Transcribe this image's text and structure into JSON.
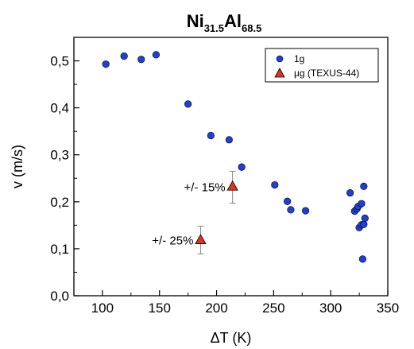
{
  "chart_data": {
    "type": "scatter",
    "title": {
      "parts": [
        {
          "text": "Ni",
          "sub": false
        },
        {
          "text": "31.5",
          "sub": true
        },
        {
          "text": "Al",
          "sub": false
        },
        {
          "text": "68.5",
          "sub": true
        }
      ]
    },
    "xlabel": "ΔT (K)",
    "ylabel": "v (m/s)",
    "xlim": [
      75,
      350
    ],
    "ylim": [
      0.0,
      0.55
    ],
    "xticks": [
      100,
      150,
      200,
      250,
      300,
      350
    ],
    "yticks": [
      {
        "value": 0.0,
        "label": "0,0"
      },
      {
        "value": 0.1,
        "label": "0,1"
      },
      {
        "value": 0.2,
        "label": "0,2"
      },
      {
        "value": 0.3,
        "label": "0,3"
      },
      {
        "value": 0.4,
        "label": "0,4"
      },
      {
        "value": 0.5,
        "label": "0,5"
      }
    ],
    "grid": false,
    "legend_position": "top-right",
    "series": [
      {
        "name": "1g",
        "marker": "circle",
        "color": "#1f3fd6",
        "points": [
          [
            103,
            0.493
          ],
          [
            119,
            0.51
          ],
          [
            134,
            0.503
          ],
          [
            147,
            0.513
          ],
          [
            175,
            0.408
          ],
          [
            195,
            0.341
          ],
          [
            211,
            0.332
          ],
          [
            222,
            0.274
          ],
          [
            251,
            0.236
          ],
          [
            262,
            0.201
          ],
          [
            265,
            0.183
          ],
          [
            278,
            0.181
          ],
          [
            317,
            0.219
          ],
          [
            321,
            0.18
          ],
          [
            323,
            0.185
          ],
          [
            324,
            0.19
          ],
          [
            325,
            0.145
          ],
          [
            327,
            0.196
          ],
          [
            327,
            0.151
          ],
          [
            328,
            0.078
          ],
          [
            329,
            0.233
          ],
          [
            329,
            0.152
          ],
          [
            330,
            0.165
          ]
        ]
      },
      {
        "name": "µg (TEXUS-44)",
        "marker": "triangle",
        "color": "#e0321e",
        "points": [
          {
            "x": 186,
            "y": 0.119,
            "err_low": 0.089,
            "err_high": 0.148,
            "label": "+/- 25%"
          },
          {
            "x": 214,
            "y": 0.233,
            "err_low": 0.197,
            "err_high": 0.265,
            "label": "+/- 15%"
          }
        ]
      }
    ]
  }
}
